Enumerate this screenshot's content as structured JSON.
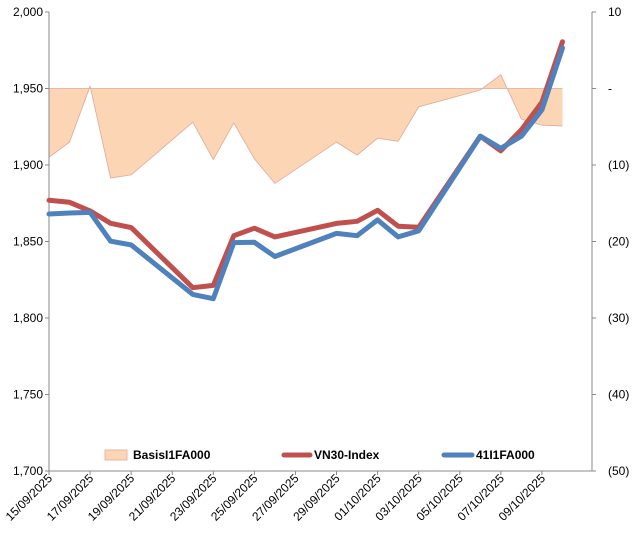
{
  "chart_data": {
    "type": "line",
    "title": "",
    "xlabel": "",
    "ylabel": "",
    "y_left_lim": [
      1700,
      2000
    ],
    "y_left_ticks": [
      "1,700",
      "1,750",
      "1,800",
      "1,850",
      "1,900",
      "1,950",
      "2,000"
    ],
    "y_left_tick_values": [
      1700,
      1750,
      1800,
      1850,
      1900,
      1950,
      2000
    ],
    "y_right_lim": [
      -50,
      10
    ],
    "y_right_ticks": [
      "(50)",
      "(40)",
      "(30)",
      "(20)",
      "(10)",
      "-",
      "10"
    ],
    "y_right_tick_values": [
      -50,
      -40,
      -30,
      -20,
      -10,
      0,
      10
    ],
    "x_ticks": [
      "15/09/2025",
      "17/09/2025",
      "19/09/2025",
      "21/09/2025",
      "23/09/2025",
      "25/09/2025",
      "27/09/2025",
      "29/09/2025",
      "01/10/2025",
      "03/10/2025",
      "05/10/2025",
      "07/10/2025",
      "09/10/2025"
    ],
    "x_dates": [
      "15/09",
      "16/09",
      "17/09",
      "18/09",
      "19/09",
      "22/09",
      "23/09",
      "24/09",
      "25/09",
      "26/09",
      "29/09",
      "30/09",
      "01/10",
      "02/10",
      "03/10",
      "06/10",
      "07/10",
      "08/10",
      "09/10",
      "10/10"
    ],
    "x_index": [
      0,
      1,
      2,
      3,
      4,
      7,
      8,
      9,
      10,
      11,
      14,
      15,
      16,
      17,
      18,
      21,
      22,
      23,
      24,
      25
    ],
    "x_total_days": 26,
    "legend_position": "bottom",
    "series": [
      {
        "name": "BasisI1FA000",
        "axis": "right",
        "style": "area",
        "color": "#fcd5b5",
        "edge_color": "#e0a898",
        "values": [
          -9,
          -7,
          0.3,
          -11.7,
          -11.3,
          -4.4,
          -9.3,
          -4.5,
          -9.2,
          -12.4,
          -7,
          -8.7,
          -6.5,
          -6.9,
          -2.4,
          -0.2,
          1.8,
          -4,
          -4.8,
          -4.9
        ]
      },
      {
        "name": "VN30-Index",
        "axis": "left",
        "style": "line",
        "color": "#c0504d",
        "values": [
          1876.9,
          1875.6,
          1870,
          1861.9,
          1859.1,
          1819.8,
          1821.3,
          1853.8,
          1858.7,
          1853,
          1861.8,
          1863.2,
          1870.4,
          1860,
          1859.3,
          1918.8,
          1909.3,
          1923,
          1941,
          1980.6
        ]
      },
      {
        "name": "41I1FA000",
        "axis": "left",
        "style": "line",
        "color": "#4f81bd",
        "values": [
          1868,
          1868.6,
          1869,
          1850.2,
          1847.8,
          1815.4,
          1812.6,
          1849.3,
          1849.5,
          1840.2,
          1855.3,
          1853.8,
          1864.1,
          1853,
          1857,
          1918.8,
          1910.9,
          1918.8,
          1936,
          1976.5
        ]
      }
    ]
  }
}
